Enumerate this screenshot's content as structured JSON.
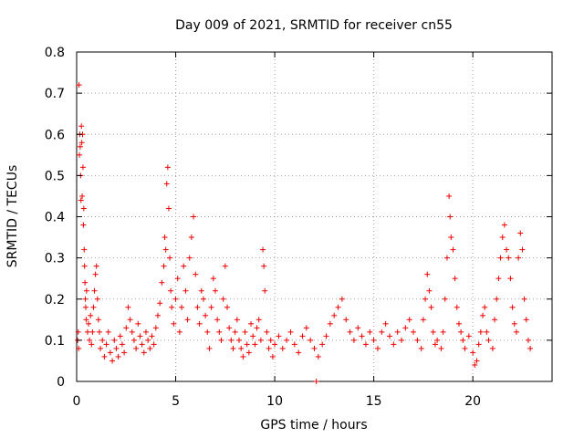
{
  "chart_data": {
    "type": "scatter",
    "title": "Day 009 of 2021, SRMTID for receiver cn55",
    "xlabel": "GPS time / hours",
    "ylabel": "SRMTID / TECUs",
    "xlim": [
      0,
      24
    ],
    "ylim": [
      0,
      0.8
    ],
    "xticks": [
      0,
      5,
      10,
      15,
      20
    ],
    "xtick_labels": [
      "0",
      "5",
      "10",
      "15",
      "20"
    ],
    "yticks": [
      0,
      0.1,
      0.2,
      0.3,
      0.4,
      0.5,
      0.6,
      0.7,
      0.8
    ],
    "ytick_labels": [
      "0",
      "0.1",
      "0.2",
      "0.3",
      "0.4",
      "0.5",
      "0.6",
      "0.7",
      "0.8"
    ],
    "grid": true,
    "marker": "plus",
    "series": [
      {
        "name": "SRMTID",
        "color": "#ee0000",
        "points": [
          [
            0.05,
            0.1
          ],
          [
            0.08,
            0.12
          ],
          [
            0.1,
            0.08
          ],
          [
            0.12,
            0.72
          ],
          [
            0.14,
            0.55
          ],
          [
            0.16,
            0.6
          ],
          [
            0.18,
            0.57
          ],
          [
            0.2,
            0.5
          ],
          [
            0.22,
            0.44
          ],
          [
            0.24,
            0.62
          ],
          [
            0.26,
            0.58
          ],
          [
            0.28,
            0.45
          ],
          [
            0.3,
            0.6
          ],
          [
            0.32,
            0.52
          ],
          [
            0.34,
            0.38
          ],
          [
            0.36,
            0.42
          ],
          [
            0.38,
            0.32
          ],
          [
            0.4,
            0.28
          ],
          [
            0.42,
            0.24
          ],
          [
            0.44,
            0.2
          ],
          [
            0.46,
            0.18
          ],
          [
            0.48,
            0.15
          ],
          [
            0.5,
            0.22
          ],
          [
            0.55,
            0.12
          ],
          [
            0.6,
            0.14
          ],
          [
            0.65,
            0.1
          ],
          [
            0.7,
            0.16
          ],
          [
            0.75,
            0.09
          ],
          [
            0.8,
            0.12
          ],
          [
            0.85,
            0.18
          ],
          [
            0.9,
            0.22
          ],
          [
            0.95,
            0.26
          ],
          [
            1.0,
            0.28
          ],
          [
            1.05,
            0.2
          ],
          [
            1.1,
            0.15
          ],
          [
            1.15,
            0.12
          ],
          [
            1.2,
            0.08
          ],
          [
            1.3,
            0.1
          ],
          [
            1.4,
            0.06
          ],
          [
            1.5,
            0.09
          ],
          [
            1.6,
            0.12
          ],
          [
            1.7,
            0.07
          ],
          [
            1.8,
            0.05
          ],
          [
            1.9,
            0.1
          ],
          [
            2.0,
            0.08
          ],
          [
            2.1,
            0.06
          ],
          [
            2.2,
            0.11
          ],
          [
            2.3,
            0.09
          ],
          [
            2.4,
            0.07
          ],
          [
            2.5,
            0.13
          ],
          [
            2.6,
            0.18
          ],
          [
            2.7,
            0.15
          ],
          [
            2.8,
            0.12
          ],
          [
            2.9,
            0.1
          ],
          [
            3.0,
            0.08
          ],
          [
            3.1,
            0.14
          ],
          [
            3.2,
            0.11
          ],
          [
            3.3,
            0.09
          ],
          [
            3.4,
            0.07
          ],
          [
            3.5,
            0.12
          ],
          [
            3.6,
            0.1
          ],
          [
            3.7,
            0.08
          ],
          [
            3.8,
            0.11
          ],
          [
            3.9,
            0.09
          ],
          [
            4.0,
            0.13
          ],
          [
            4.1,
            0.16
          ],
          [
            4.2,
            0.19
          ],
          [
            4.3,
            0.24
          ],
          [
            4.4,
            0.28
          ],
          [
            4.45,
            0.35
          ],
          [
            4.5,
            0.32
          ],
          [
            4.55,
            0.48
          ],
          [
            4.6,
            0.52
          ],
          [
            4.65,
            0.42
          ],
          [
            4.7,
            0.3
          ],
          [
            4.75,
            0.22
          ],
          [
            4.8,
            0.18
          ],
          [
            4.9,
            0.14
          ],
          [
            5.0,
            0.2
          ],
          [
            5.1,
            0.25
          ],
          [
            5.2,
            0.12
          ],
          [
            5.3,
            0.18
          ],
          [
            5.4,
            0.28
          ],
          [
            5.5,
            0.22
          ],
          [
            5.6,
            0.15
          ],
          [
            5.7,
            0.3
          ],
          [
            5.8,
            0.35
          ],
          [
            5.9,
            0.4
          ],
          [
            6.0,
            0.26
          ],
          [
            6.1,
            0.18
          ],
          [
            6.2,
            0.14
          ],
          [
            6.3,
            0.22
          ],
          [
            6.4,
            0.2
          ],
          [
            6.5,
            0.16
          ],
          [
            6.6,
            0.12
          ],
          [
            6.7,
            0.08
          ],
          [
            6.8,
            0.18
          ],
          [
            6.9,
            0.25
          ],
          [
            7.0,
            0.22
          ],
          [
            7.1,
            0.15
          ],
          [
            7.2,
            0.12
          ],
          [
            7.3,
            0.1
          ],
          [
            7.4,
            0.2
          ],
          [
            7.5,
            0.28
          ],
          [
            7.6,
            0.18
          ],
          [
            7.7,
            0.13
          ],
          [
            7.8,
            0.1
          ],
          [
            7.9,
            0.08
          ],
          [
            8.0,
            0.12
          ],
          [
            8.1,
            0.15
          ],
          [
            8.2,
            0.1
          ],
          [
            8.3,
            0.08
          ],
          [
            8.4,
            0.06
          ],
          [
            8.5,
            0.12
          ],
          [
            8.6,
            0.09
          ],
          [
            8.7,
            0.07
          ],
          [
            8.8,
            0.14
          ],
          [
            8.9,
            0.11
          ],
          [
            9.0,
            0.09
          ],
          [
            9.1,
            0.13
          ],
          [
            9.2,
            0.15
          ],
          [
            9.3,
            0.1
          ],
          [
            9.4,
            0.32
          ],
          [
            9.45,
            0.28
          ],
          [
            9.5,
            0.22
          ],
          [
            9.6,
            0.12
          ],
          [
            9.7,
            0.08
          ],
          [
            9.8,
            0.1
          ],
          [
            9.9,
            0.06
          ],
          [
            10.0,
            0.09
          ],
          [
            10.2,
            0.11
          ],
          [
            10.4,
            0.08
          ],
          [
            10.6,
            0.1
          ],
          [
            10.8,
            0.12
          ],
          [
            11.0,
            0.09
          ],
          [
            11.2,
            0.07
          ],
          [
            11.4,
            0.11
          ],
          [
            11.6,
            0.13
          ],
          [
            11.8,
            0.1
          ],
          [
            12.0,
            0.08
          ],
          [
            12.1,
            0.0
          ],
          [
            12.2,
            0.06
          ],
          [
            12.4,
            0.09
          ],
          [
            12.6,
            0.11
          ],
          [
            12.8,
            0.14
          ],
          [
            13.0,
            0.16
          ],
          [
            13.2,
            0.18
          ],
          [
            13.4,
            0.2
          ],
          [
            13.6,
            0.15
          ],
          [
            13.8,
            0.12
          ],
          [
            14.0,
            0.1
          ],
          [
            14.2,
            0.13
          ],
          [
            14.4,
            0.11
          ],
          [
            14.6,
            0.09
          ],
          [
            14.8,
            0.12
          ],
          [
            15.0,
            0.1
          ],
          [
            15.2,
            0.08
          ],
          [
            15.4,
            0.12
          ],
          [
            15.6,
            0.14
          ],
          [
            15.8,
            0.11
          ],
          [
            16.0,
            0.09
          ],
          [
            16.2,
            0.12
          ],
          [
            16.4,
            0.1
          ],
          [
            16.6,
            0.13
          ],
          [
            16.8,
            0.15
          ],
          [
            17.0,
            0.12
          ],
          [
            17.2,
            0.1
          ],
          [
            17.4,
            0.08
          ],
          [
            17.5,
            0.15
          ],
          [
            17.6,
            0.2
          ],
          [
            17.7,
            0.26
          ],
          [
            17.8,
            0.22
          ],
          [
            17.9,
            0.18
          ],
          [
            18.0,
            0.12
          ],
          [
            18.1,
            0.09
          ],
          [
            18.2,
            0.1
          ],
          [
            18.4,
            0.08
          ],
          [
            18.5,
            0.12
          ],
          [
            18.6,
            0.2
          ],
          [
            18.7,
            0.3
          ],
          [
            18.8,
            0.45
          ],
          [
            18.85,
            0.4
          ],
          [
            18.9,
            0.35
          ],
          [
            19.0,
            0.32
          ],
          [
            19.1,
            0.25
          ],
          [
            19.2,
            0.18
          ],
          [
            19.3,
            0.14
          ],
          [
            19.4,
            0.12
          ],
          [
            19.5,
            0.1
          ],
          [
            19.6,
            0.08
          ],
          [
            19.8,
            0.11
          ],
          [
            20.0,
            0.07
          ],
          [
            20.1,
            0.04
          ],
          [
            20.2,
            0.05
          ],
          [
            20.3,
            0.09
          ],
          [
            20.4,
            0.12
          ],
          [
            20.5,
            0.16
          ],
          [
            20.6,
            0.18
          ],
          [
            20.7,
            0.12
          ],
          [
            20.8,
            0.1
          ],
          [
            21.0,
            0.08
          ],
          [
            21.1,
            0.15
          ],
          [
            21.2,
            0.2
          ],
          [
            21.3,
            0.25
          ],
          [
            21.4,
            0.3
          ],
          [
            21.5,
            0.35
          ],
          [
            21.6,
            0.38
          ],
          [
            21.7,
            0.32
          ],
          [
            21.8,
            0.3
          ],
          [
            21.9,
            0.25
          ],
          [
            22.0,
            0.18
          ],
          [
            22.1,
            0.14
          ],
          [
            22.2,
            0.12
          ],
          [
            22.3,
            0.3
          ],
          [
            22.4,
            0.36
          ],
          [
            22.5,
            0.32
          ],
          [
            22.6,
            0.2
          ],
          [
            22.7,
            0.15
          ],
          [
            22.8,
            0.1
          ],
          [
            22.9,
            0.08
          ]
        ]
      }
    ]
  }
}
